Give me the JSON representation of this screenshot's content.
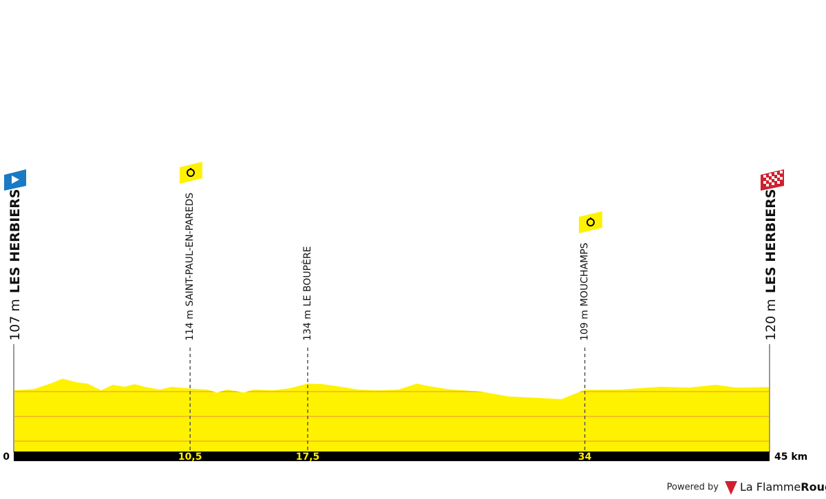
{
  "chart_data": {
    "type": "area",
    "x": [
      0,
      1.2,
      2.3,
      2.9,
      3.7,
      4.4,
      5.2,
      5.9,
      6.6,
      7.2,
      7.8,
      8.7,
      9.4,
      10.5,
      11.5,
      12.1,
      12.7,
      13.7,
      14.3,
      15.4,
      16.4,
      17.5,
      18.4,
      19.5,
      20.5,
      21.7,
      22.9,
      24.0,
      24.8,
      25.8,
      27.9,
      29.5,
      31.1,
      32.6,
      33.4,
      34,
      36.1,
      38.5,
      40.2,
      41.8,
      43.0,
      45
    ],
    "values": [
      107,
      112,
      137,
      154,
      140,
      134,
      107,
      129,
      121,
      132,
      121,
      110,
      121,
      114,
      110,
      98,
      110,
      98,
      110,
      107,
      115,
      134,
      132,
      121,
      110,
      107,
      110,
      134,
      123,
      112,
      101,
      82,
      77,
      71,
      93,
      109,
      110,
      121,
      118,
      129,
      118,
      120
    ],
    "color": "#fff200",
    "xlim": [
      0,
      45
    ],
    "ylim": [
      -140,
      160
    ],
    "xticks": [
      0,
      {
        "value": 10.5,
        "label": "10,5"
      },
      {
        "value": 17.5,
        "label": "17,5"
      },
      34,
      {
        "value": 45,
        "label": "45 km"
      }
    ],
    "grid": true,
    "waypoints": [
      {
        "name": "LES HERBIERS",
        "km": 0,
        "elevation": 107,
        "elevation_label": "107 m"
      },
      {
        "name": "SAINT-PAUL-EN-PAREDS",
        "km": 10.5,
        "elevation": 114,
        "elevation_label": "114 m"
      },
      {
        "name": "LE BOUPÈRE",
        "km": 17.5,
        "elevation": 134,
        "elevation_label": "134 m"
      },
      {
        "name": "MOUCHAMPS",
        "km": 34,
        "elevation": 109,
        "elevation_label": "109 m"
      },
      {
        "name": "LES HERBIERS",
        "km": 45,
        "elevation": 120,
        "elevation_label": "120 m"
      }
    ]
  },
  "footer": {
    "powered_by": "Powered by",
    "brand": "La Flamme",
    "brand_bold": "Rouge"
  }
}
